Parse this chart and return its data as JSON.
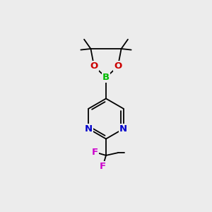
{
  "background_color": "#ececec",
  "atom_colors": {
    "C": "#000000",
    "N": "#0000cc",
    "O": "#cc0000",
    "B": "#00bb00",
    "F": "#cc00cc"
  },
  "bond_color": "#000000",
  "bond_width": 1.3,
  "font_size_atom": 9.5,
  "font_size_methyl": 7.5,
  "scale": 1.0
}
